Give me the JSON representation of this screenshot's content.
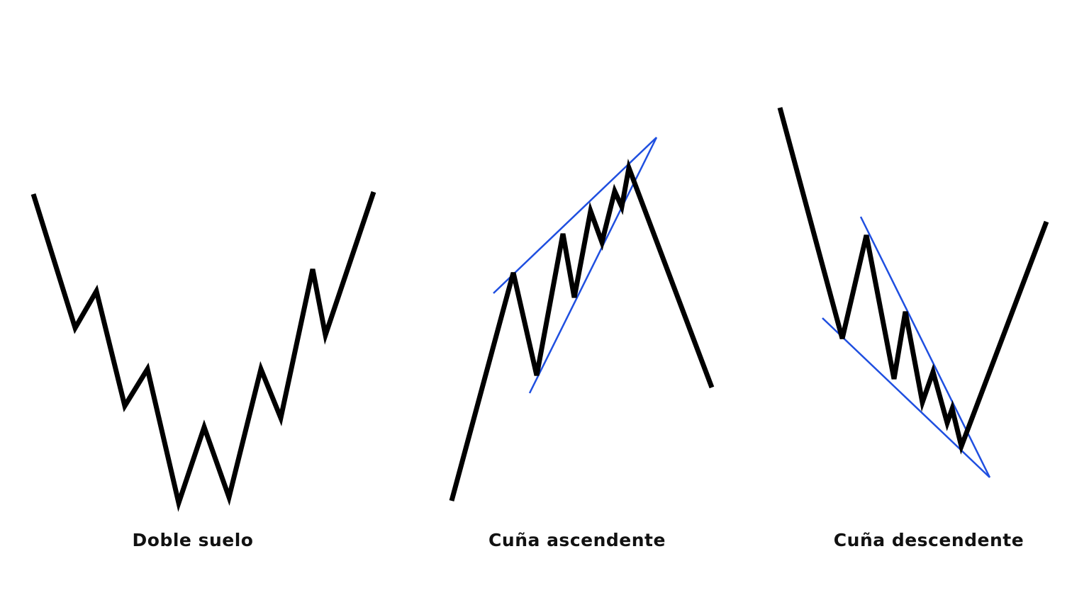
{
  "colors": {
    "price_line": "#000000",
    "trend_line": "#1f4fe0"
  },
  "patterns": [
    {
      "label": "Doble suelo"
    },
    {
      "label": "Cuña ascendente"
    },
    {
      "label": "Cuña descendente"
    }
  ]
}
